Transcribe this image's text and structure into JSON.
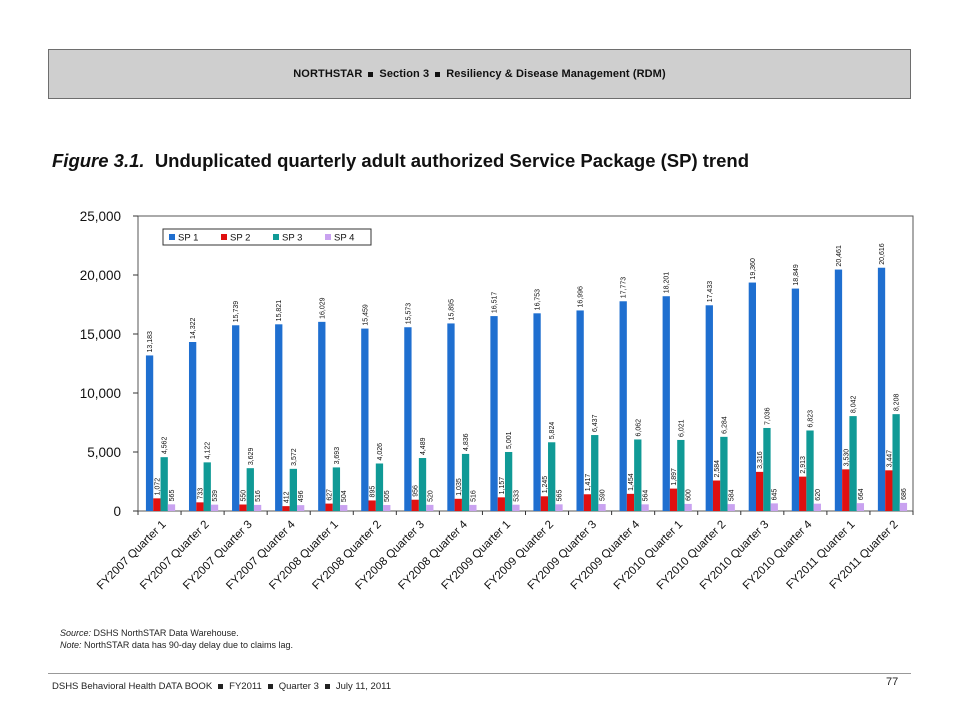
{
  "header": {
    "part1": "NORTHSTAR",
    "part2": "Section 3",
    "part3": "Resiliency & Disease Management (RDM)"
  },
  "figure": {
    "label": "Figure 3.1.",
    "title": "Unduplicated quarterly adult authorized Service Package (SP) trend"
  },
  "chart_data": {
    "type": "bar",
    "categories": [
      "FY2007 Quarter 1",
      "FY2007 Quarter 2",
      "FY2007 Quarter 3",
      "FY2007 Quarter 4",
      "FY2008 Quarter 1",
      "FY2008 Quarter 2",
      "FY2008 Quarter 3",
      "FY2008 Quarter 4",
      "FY2009 Quarter 1",
      "FY2009 Quarter 2",
      "FY2009 Quarter 3",
      "FY2009 Quarter 4",
      "FY2010 Quarter 1",
      "FY2010 Quarter 2",
      "FY2010 Quarter 3",
      "FY2010 Quarter 4",
      "FY2011 Quarter 1",
      "FY2011 Quarter 2"
    ],
    "series": [
      {
        "name": "SP 1",
        "color": "#1f6fd0",
        "values": [
          13183,
          14322,
          15739,
          15821,
          16029,
          15459,
          15573,
          15895,
          16517,
          16753,
          16996,
          17773,
          18201,
          17433,
          19360,
          18849,
          20461,
          20616
        ],
        "labels": [
          "13,183",
          "14,322",
          "15,739",
          "15,821",
          "16,029",
          "15,459",
          "15,573",
          "15,895",
          "16,517",
          "16,753",
          "16,996",
          "17,773",
          "18,201",
          "17,433",
          "19,360",
          "18,849",
          "20,461",
          "20,616"
        ]
      },
      {
        "name": "SP 2",
        "color": "#e01010",
        "values": [
          1072,
          733,
          550,
          412,
          627,
          895,
          956,
          1035,
          1157,
          1245,
          1417,
          1454,
          1897,
          2584,
          3316,
          2913,
          3530,
          3447
        ],
        "labels": [
          "1,072",
          "733",
          "550",
          "412",
          "627",
          "895",
          "956",
          "1,035",
          "1,157",
          "1,245",
          "1,417",
          "1,454",
          "1,897",
          "2,584",
          "3,316",
          "2,913",
          "3,530",
          "3,447"
        ]
      },
      {
        "name": "SP 3",
        "color": "#109a96",
        "values": [
          4562,
          4122,
          3629,
          3572,
          3693,
          4026,
          4489,
          4836,
          5001,
          5824,
          6437,
          6062,
          6021,
          6284,
          7036,
          6823,
          8042,
          8208
        ],
        "labels": [
          "4,562",
          "4,122",
          "3,629",
          "3,572",
          "3,693",
          "4,026",
          "4,489",
          "4,836",
          "5,001",
          "5,824",
          "6,437",
          "6,062",
          "6,021",
          "6,284",
          "7,036",
          "6,823",
          "8,042",
          "8,208"
        ]
      },
      {
        "name": "SP 4",
        "color": "#c9a2f0",
        "values": [
          565,
          539,
          516,
          496,
          504,
          505,
          520,
          516,
          533,
          565,
          590,
          564,
          600,
          584,
          645,
          620,
          664,
          686
        ],
        "labels": [
          "565",
          "539",
          "516",
          "496",
          "504",
          "505",
          "520",
          "516",
          "533",
          "565",
          "590",
          "564",
          "600",
          "584",
          "645",
          "620",
          "664",
          "686"
        ]
      }
    ],
    "ylim": [
      0,
      25000
    ],
    "yticks": [
      "0",
      "5,000",
      "10,000",
      "15,000",
      "20,000",
      "25,000"
    ],
    "ytick_values": [
      0,
      5000,
      10000,
      15000,
      20000,
      25000
    ],
    "xlabel": "",
    "ylabel": "",
    "legend_position": "top-left",
    "grid": false
  },
  "source": {
    "label": "Source:",
    "text": "DSHS NorthSTAR Data Warehouse.",
    "note_label": "Note:",
    "note_text": "NorthSTAR data has 90-day delay due to claims lag."
  },
  "footer": {
    "part1": "DSHS Behavioral Health DATA BOOK",
    "part2": "FY2011",
    "part3": "Quarter 3",
    "part4": "July 11, 2011",
    "page": "77"
  }
}
